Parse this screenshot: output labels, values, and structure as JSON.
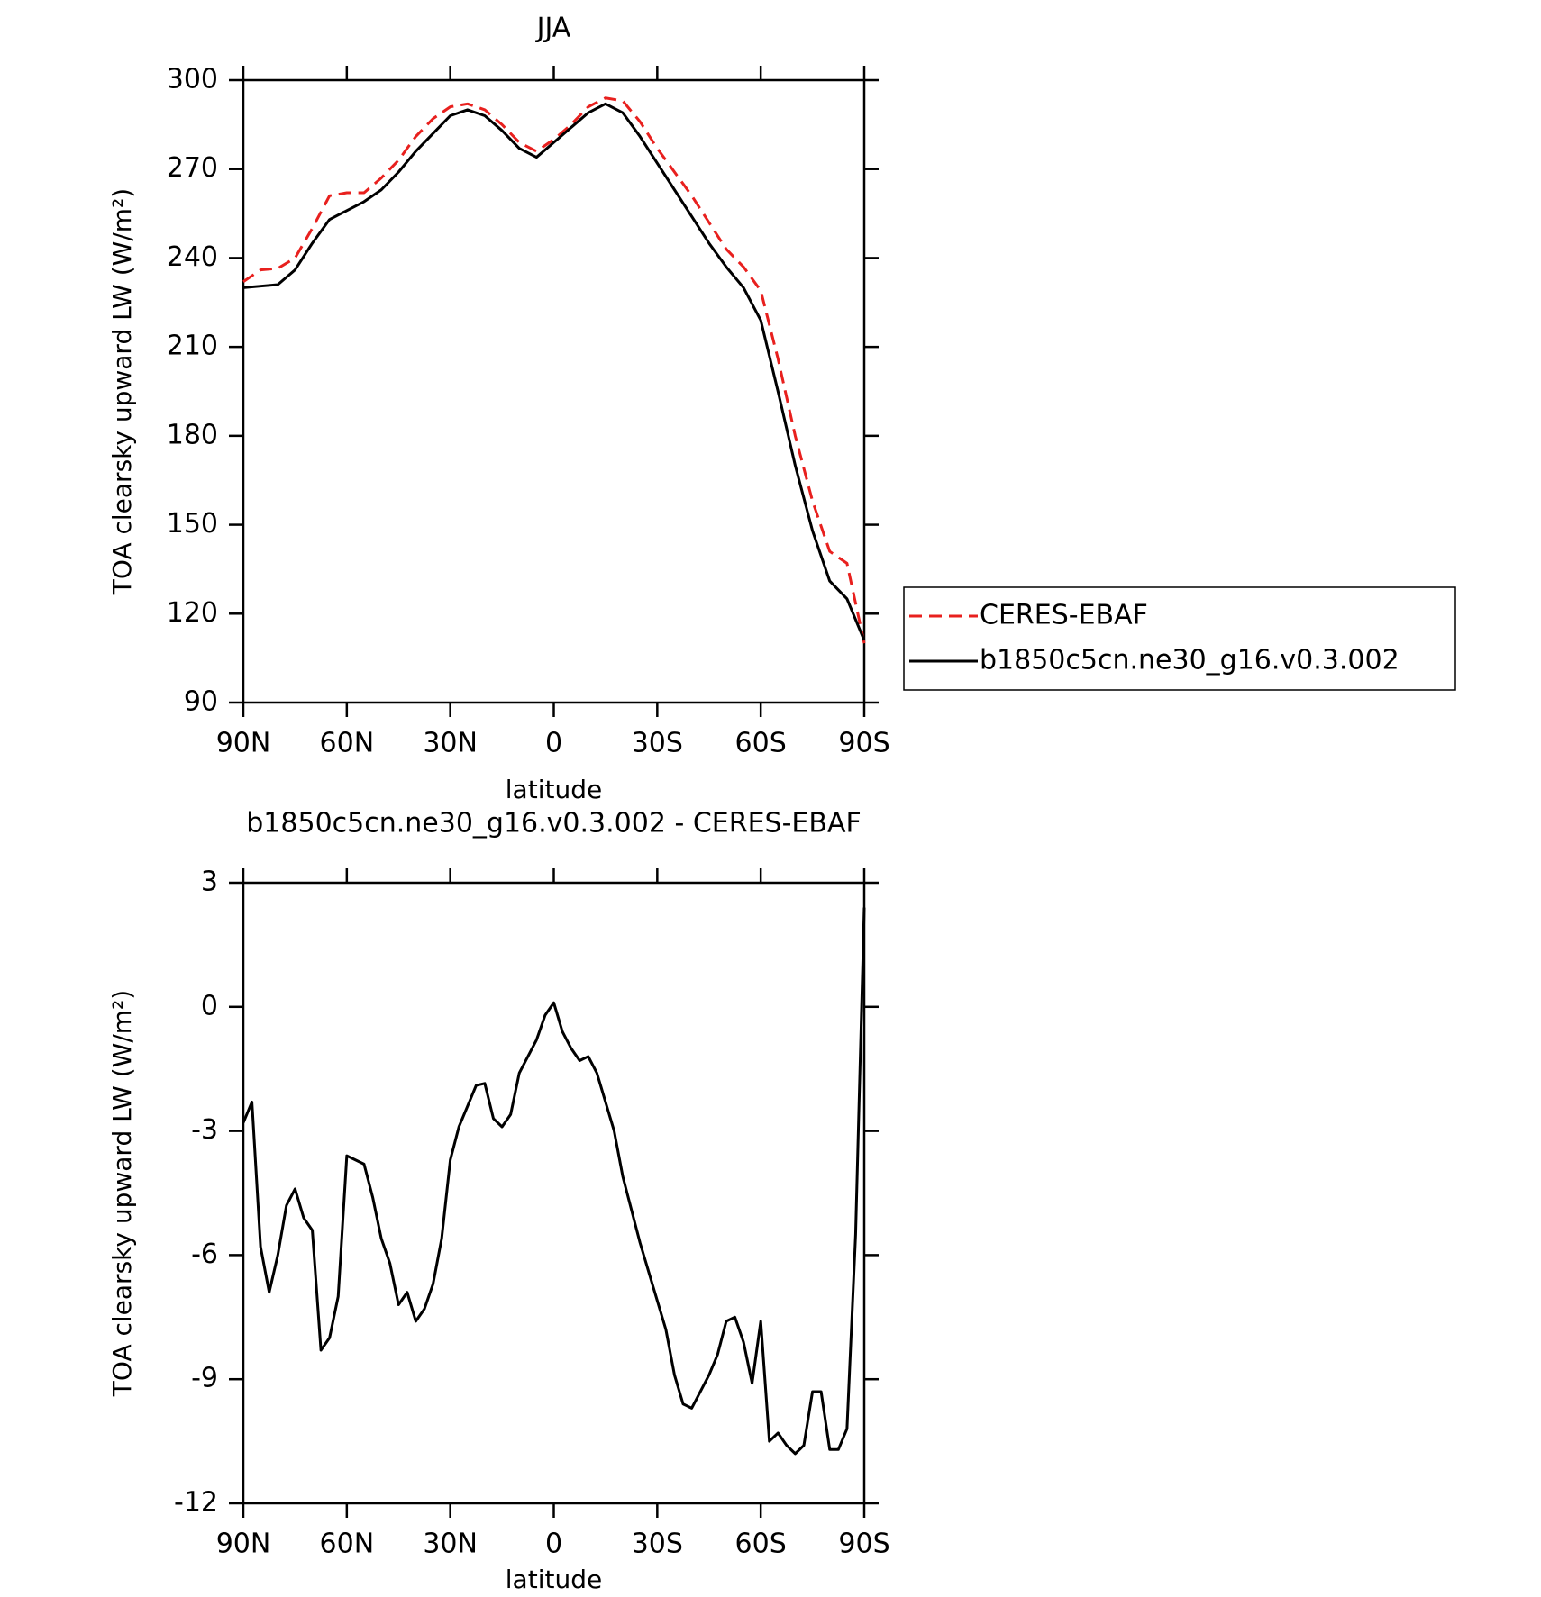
{
  "chart_data": [
    {
      "type": "line",
      "title": "JJA",
      "xlabel": "latitude",
      "ylabel": "TOA clearsky upward LW (W/m²)",
      "x": [
        90,
        85,
        80,
        75,
        70,
        65,
        60,
        55,
        50,
        45,
        40,
        35,
        30,
        25,
        20,
        15,
        10,
        5,
        0,
        -5,
        -10,
        -15,
        -20,
        -25,
        -30,
        -35,
        -40,
        -45,
        -50,
        -55,
        -60,
        -65,
        -70,
        -75,
        -80,
        -85,
        -90
      ],
      "series": [
        {
          "name": "CERES-EBAF",
          "color": "#e8201e",
          "dash": true,
          "values": [
            232,
            236,
            236.5,
            240,
            250,
            261,
            262,
            262,
            267,
            273,
            281,
            287,
            291,
            292,
            290,
            285,
            279,
            276,
            280,
            285,
            291,
            294,
            293,
            286,
            277,
            269,
            261,
            252,
            243,
            237,
            229,
            206,
            180,
            158,
            141,
            137,
            110
          ]
        },
        {
          "name": "b1850c5cn.ne30_g16.v0.3.002",
          "color": "#000000",
          "dash": false,
          "values": [
            230,
            230.5,
            231,
            236,
            245,
            253,
            256,
            259,
            263,
            269,
            276,
            282,
            288,
            290,
            288,
            283,
            277,
            274,
            279,
            284,
            289,
            292,
            289,
            281,
            272,
            263,
            254,
            245,
            237,
            230,
            219,
            195,
            170,
            148,
            131,
            125,
            111
          ]
        }
      ],
      "xlim": [
        90,
        -90
      ],
      "xticks": [
        {
          "value": 90,
          "label": "90N"
        },
        {
          "value": 60,
          "label": "60N"
        },
        {
          "value": 30,
          "label": "30N"
        },
        0,
        {
          "value": -30,
          "label": "30S"
        },
        {
          "value": -60,
          "label": "60S"
        },
        {
          "value": -90,
          "label": "90S"
        }
      ],
      "ylim": [
        90,
        300
      ],
      "yticks": [
        90,
        120,
        150,
        180,
        210,
        240,
        270,
        300
      ],
      "legend": "right"
    },
    {
      "type": "line",
      "title": "b1850c5cn.ne30_g16.v0.3.002 - CERES-EBAF",
      "xlabel": "latitude",
      "ylabel": "TOA clearsky upward LW (W/m²)",
      "x": [
        90,
        87.5,
        85,
        82.5,
        80,
        77.5,
        75,
        72.5,
        70,
        67.5,
        65,
        62.5,
        60,
        57.5,
        55,
        52.5,
        50,
        47.5,
        45,
        42.5,
        40,
        37.5,
        35,
        32.5,
        30,
        27.5,
        25,
        22.5,
        20,
        17.5,
        15,
        12.5,
        10,
        7.5,
        5,
        2.5,
        0,
        -2.5,
        -5,
        -7.5,
        -10,
        -12.5,
        -15,
        -17.5,
        -20,
        -22.5,
        -25,
        -27.5,
        -30,
        -32.5,
        -35,
        -37.5,
        -40,
        -42.5,
        -45,
        -47.5,
        -50,
        -52.5,
        -55,
        -57.5,
        -60,
        -62.5,
        -65,
        -67.5,
        -70,
        -72.5,
        -75,
        -77.5,
        -80,
        -82.5,
        -85,
        -87.5,
        -90
      ],
      "series": [
        {
          "color": "#000000",
          "dash": false,
          "values": [
            -2.8,
            -2.3,
            -5.8,
            -6.9,
            -6.0,
            -4.8,
            -4.4,
            -5.1,
            -5.4,
            -8.3,
            -8.0,
            -7.0,
            -3.6,
            -3.7,
            -3.8,
            -4.6,
            -5.6,
            -6.2,
            -7.2,
            -6.9,
            -7.6,
            -7.3,
            -6.7,
            -5.6,
            -3.7,
            -2.9,
            -2.4,
            -1.9,
            -1.85,
            -2.7,
            -2.9,
            -2.6,
            -1.6,
            -1.2,
            -0.8,
            -0.2,
            0.1,
            -0.6,
            -1.0,
            -1.3,
            -1.2,
            -1.6,
            -2.3,
            -3.0,
            -4.1,
            -4.9,
            -5.7,
            -6.4,
            -7.1,
            -7.8,
            -8.9,
            -9.6,
            -9.7,
            -9.3,
            -8.9,
            -8.4,
            -7.6,
            -7.5,
            -8.1,
            -9.1,
            -7.6,
            -10.5,
            -10.3,
            -10.6,
            -10.8,
            -10.6,
            -9.3,
            -9.3,
            -10.7,
            -10.7,
            -10.2,
            -5.5,
            2.4
          ]
        }
      ],
      "xlim": [
        90,
        -90
      ],
      "xticks": [
        {
          "value": 90,
          "label": "90N"
        },
        {
          "value": 60,
          "label": "60N"
        },
        {
          "value": 30,
          "label": "30N"
        },
        0,
        {
          "value": -30,
          "label": "30S"
        },
        {
          "value": -60,
          "label": "60S"
        },
        {
          "value": -90,
          "label": "90S"
        }
      ],
      "ylim": [
        -12,
        3
      ],
      "yticks": [
        -12,
        -9,
        -6,
        -3,
        0,
        3
      ]
    }
  ]
}
